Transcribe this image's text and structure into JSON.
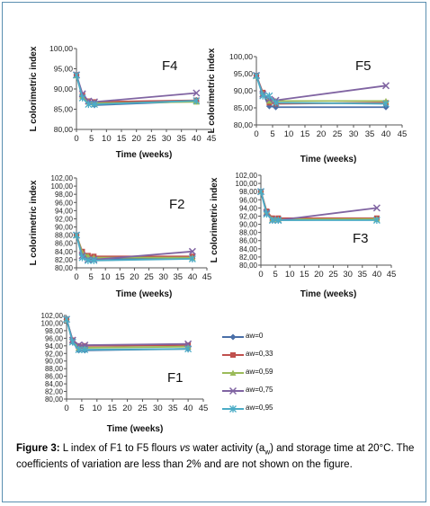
{
  "chart_data": [
    {
      "type": "line",
      "title": "F4",
      "xlabel": "Time (weeks)",
      "ylabel": "L colorimetric index",
      "ylim": [
        80,
        100
      ],
      "yticks": [
        80,
        85,
        90,
        95,
        100
      ],
      "ytick_labels": [
        "80,00",
        "85,00",
        "90,00",
        "95,00",
        "100,00"
      ],
      "xticks": [
        0,
        5,
        10,
        15,
        20,
        25,
        30,
        35,
        40,
        45
      ],
      "x": [
        0,
        2,
        4,
        6,
        40
      ],
      "series": [
        {
          "name": "aw=0",
          "values": [
            93.5,
            88.0,
            86.5,
            86.0,
            87.0
          ]
        },
        {
          "name": "aw=0,33",
          "values": [
            93.5,
            88.5,
            87.0,
            86.8,
            87.2
          ]
        },
        {
          "name": "aw=0,59",
          "values": [
            93.3,
            88.2,
            86.8,
            86.5,
            86.8
          ]
        },
        {
          "name": "aw=0,75",
          "values": [
            93.5,
            88.8,
            87.0,
            86.8,
            89.0
          ]
        },
        {
          "name": "aw=0,95",
          "values": [
            93.4,
            87.8,
            86.2,
            86.2,
            87.1
          ]
        }
      ]
    },
    {
      "type": "line",
      "title": "F5",
      "xlabel": "Time (weeks)",
      "ylabel": "L colorimetric index",
      "ylim": [
        80,
        100
      ],
      "yticks": [
        80,
        85,
        90,
        95,
        100
      ],
      "ytick_labels": [
        "80,00",
        "85,00",
        "90,00",
        "95,00",
        "100,00"
      ],
      "xticks": [
        0,
        5,
        10,
        15,
        20,
        25,
        30,
        35,
        40,
        45
      ],
      "x": [
        0,
        2,
        4,
        6,
        40
      ],
      "series": [
        {
          "name": "aw=0",
          "values": [
            94.5,
            89.0,
            85.5,
            85.2,
            85.2
          ]
        },
        {
          "name": "aw=0,33",
          "values": [
            94.5,
            89.5,
            86.5,
            86.2,
            86.5
          ]
        },
        {
          "name": "aw=0,59",
          "values": [
            94.3,
            89.2,
            87.0,
            87.0,
            87.0
          ]
        },
        {
          "name": "aw=0,75",
          "values": [
            94.5,
            89.0,
            87.5,
            87.2,
            91.5
          ]
        },
        {
          "name": "aw=0,95",
          "values": [
            94.4,
            88.5,
            88.5,
            86.5,
            86.2
          ]
        }
      ]
    },
    {
      "type": "line",
      "title": "F2",
      "xlabel": "Time (weeks)",
      "ylabel": "L colorimetric index",
      "ylim": [
        80,
        102
      ],
      "yticks": [
        80,
        82,
        84,
        86,
        88,
        90,
        92,
        94,
        96,
        98,
        100,
        102
      ],
      "ytick_labels": [
        "80,00",
        "82,00",
        "84,00",
        "86,00",
        "88,00",
        "90,00",
        "92,00",
        "94,00",
        "96,00",
        "98,00",
        "100,00",
        "102,00"
      ],
      "xticks": [
        0,
        5,
        10,
        15,
        20,
        25,
        30,
        35,
        40,
        45
      ],
      "x": [
        0,
        2,
        4,
        6,
        40
      ],
      "series": [
        {
          "name": "aw=0",
          "values": [
            88.0,
            83.5,
            82.5,
            82.2,
            82.3
          ]
        },
        {
          "name": "aw=0,33",
          "values": [
            88.0,
            84.0,
            83.0,
            82.8,
            82.8
          ]
        },
        {
          "name": "aw=0,59",
          "values": [
            88.0,
            83.8,
            82.8,
            82.5,
            82.5
          ]
        },
        {
          "name": "aw=0,75",
          "values": [
            88.0,
            83.0,
            82.0,
            82.0,
            84.0
          ]
        },
        {
          "name": "aw=0,95",
          "values": [
            88.0,
            82.5,
            81.8,
            81.8,
            82.2
          ]
        }
      ]
    },
    {
      "type": "line",
      "title": "F3",
      "xlabel": "Time (weeks)",
      "ylabel": "L colorimetric index",
      "ylim": [
        80,
        102
      ],
      "yticks": [
        80,
        82,
        84,
        86,
        88,
        90,
        92,
        94,
        96,
        98,
        100,
        102
      ],
      "ytick_labels": [
        "80,00",
        "82,00",
        "84,00",
        "86,00",
        "88,00",
        "90,00",
        "92,00",
        "94,00",
        "96,00",
        "98,00",
        "100,00",
        "102,00"
      ],
      "xticks": [
        0,
        5,
        10,
        15,
        20,
        25,
        30,
        35,
        40,
        45
      ],
      "x": [
        0,
        2,
        4,
        6,
        40
      ],
      "series": [
        {
          "name": "aw=0",
          "values": [
            98.0,
            93.0,
            91.0,
            91.0,
            91.2
          ]
        },
        {
          "name": "aw=0,33",
          "values": [
            98.0,
            93.2,
            91.5,
            91.5,
            91.5
          ]
        },
        {
          "name": "aw=0,59",
          "values": [
            98.0,
            93.0,
            91.2,
            91.2,
            91.3
          ]
        },
        {
          "name": "aw=0,75",
          "values": [
            98.0,
            92.8,
            91.0,
            91.0,
            94.0
          ]
        },
        {
          "name": "aw=0,95",
          "values": [
            98.0,
            92.5,
            91.0,
            91.0,
            91.0
          ]
        }
      ]
    },
    {
      "type": "line",
      "title": "F1",
      "xlabel": "Time (weeks)",
      "ylabel": "",
      "ylim": [
        80,
        102
      ],
      "yticks": [
        80,
        82,
        84,
        86,
        88,
        90,
        92,
        94,
        96,
        98,
        100,
        102
      ],
      "ytick_labels": [
        "80,00",
        "82,00",
        "84,00",
        "86,00",
        "88,00",
        "90,00",
        "92,00",
        "94,00",
        "96,00",
        "98,00",
        "100,00",
        "102,00"
      ],
      "xticks": [
        0,
        5,
        10,
        15,
        20,
        25,
        30,
        35,
        40,
        45
      ],
      "x": [
        0,
        2,
        4,
        6,
        40
      ],
      "series": [
        {
          "name": "aw=0",
          "values": [
            101.0,
            95.0,
            92.8,
            92.8,
            93.2
          ]
        },
        {
          "name": "aw=0,33",
          "values": [
            101.0,
            95.5,
            94.0,
            94.0,
            94.2
          ]
        },
        {
          "name": "aw=0,59",
          "values": [
            101.0,
            95.3,
            93.5,
            93.5,
            93.8
          ]
        },
        {
          "name": "aw=0,75",
          "values": [
            101.0,
            95.5,
            94.2,
            94.2,
            94.5
          ]
        },
        {
          "name": "aw=0,95",
          "values": [
            101.0,
            95.0,
            93.0,
            93.0,
            93.2
          ]
        }
      ]
    }
  ],
  "legend": {
    "items": [
      {
        "label": "aw=0",
        "color": "#4a6fa8",
        "marker": "diamond"
      },
      {
        "label": "aw=0,33",
        "color": "#c0504d",
        "marker": "square"
      },
      {
        "label": "aw=0,59",
        "color": "#9bbb59",
        "marker": "triangle"
      },
      {
        "label": "aw=0,75",
        "color": "#8064a2",
        "marker": "x"
      },
      {
        "label": "aw=0,95",
        "color": "#4bacc6",
        "marker": "asterisk"
      }
    ]
  },
  "caption": {
    "label": "Figure 3:",
    "text_part1": " L index of F1 to F5 flours ",
    "text_italic": "vs",
    "text_part2": " water activity (a",
    "text_sub": "w",
    "text_part3": ") and storage time at 20°C. The coefficients of variation are less than 2% and are not shown on the figure."
  }
}
